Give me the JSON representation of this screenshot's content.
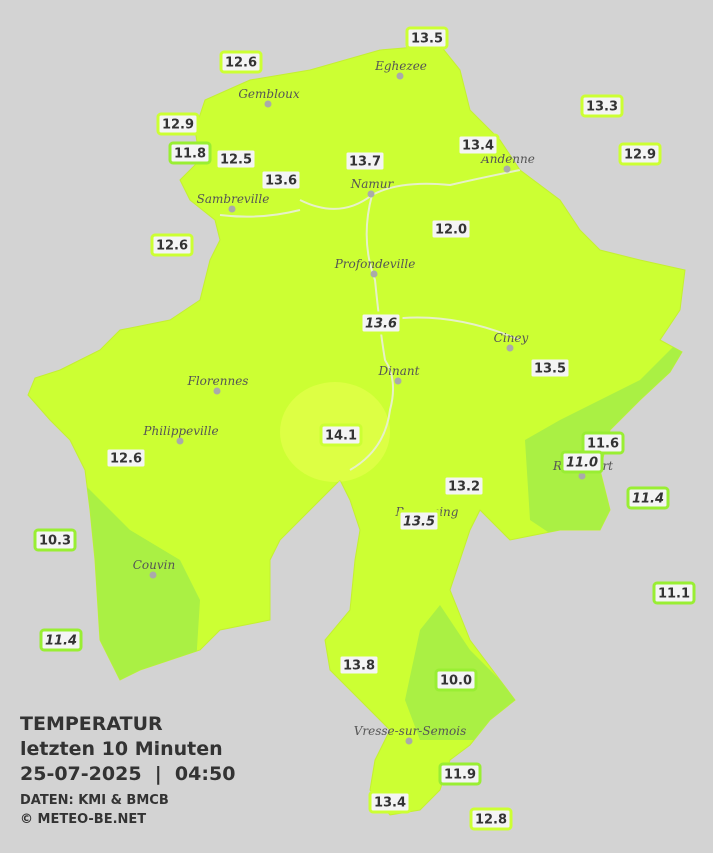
{
  "title": {
    "heading": "TEMPERATUR",
    "subtitle": "letzten 10 Minuten",
    "datetime": "25-07-2025  |  04:50"
  },
  "credits": {
    "source": "DATEN: KMI & BMCB",
    "copyright": "© METEO-BE.NET"
  },
  "cities": [
    "Eghezee",
    "Gembloux",
    "Andenne",
    "Namur",
    "Sambreville",
    "Profondeville",
    "Ciney",
    "Dinant",
    "Florennes",
    "Philippeville",
    "Rochefort",
    "Beauraing",
    "Couvin",
    "Vresse-sur-Semois"
  ],
  "stations": [
    "13.5",
    "12.6",
    "13.3",
    "12.9",
    "11.8",
    "12.5",
    "13.4",
    "13.7",
    "12.9",
    "13.6",
    "12.6",
    "12.0",
    "13.6",
    "13.5",
    "14.1",
    "11.6",
    "11.0",
    "12.6",
    "13.2",
    "11.4",
    "13.5",
    "10.3",
    "11.1",
    "11.4",
    "13.8",
    "10.0",
    "11.9",
    "13.4",
    "12.8"
  ]
}
